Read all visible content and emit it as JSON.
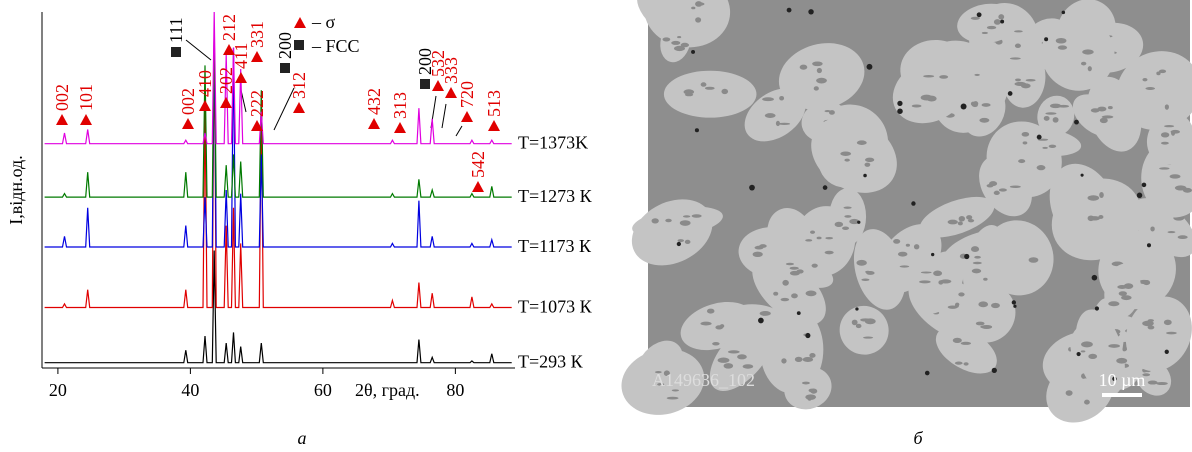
{
  "chart_data": {
    "type": "line",
    "ylabel": "I,відн.од.",
    "xlabel": "2θ, град.",
    "xlim": [
      17.6,
      89
    ],
    "xticks": [
      20,
      40,
      60,
      80
    ],
    "ylim": [
      0,
      100
    ],
    "x": [
      18,
      20.7,
      21.0,
      21.3,
      24.2,
      24.5,
      24.8,
      39.0,
      39.3,
      39.6,
      41.9,
      42.2,
      42.5,
      43.3,
      43.6,
      43.9,
      45.1,
      45.4,
      45.7,
      46.2,
      46.5,
      46.8,
      47.3,
      47.6,
      47.9,
      50.4,
      50.7,
      51.0,
      70.2,
      70.5,
      70.8,
      74.2,
      74.5,
      74.8,
      76.2,
      76.5,
      76.8,
      82.2,
      82.5,
      82.8,
      85.2,
      85.5,
      85.8,
      88.5
    ],
    "series": [
      {
        "name": "T=293 К",
        "color": "#000000",
        "values": [
          1.5,
          1.5,
          1.5,
          1.5,
          1.5,
          1.5,
          1.5,
          1.5,
          5,
          1.5,
          1.5,
          9,
          1.5,
          1.5,
          33,
          1.5,
          1.5,
          7,
          1.5,
          1.5,
          10,
          1.5,
          1.5,
          6,
          1.5,
          1.5,
          7,
          1.5,
          1.5,
          1.5,
          1.5,
          1.5,
          8,
          1.5,
          1.5,
          3,
          1.5,
          1.5,
          2,
          1.5,
          1.5,
          4,
          1.5,
          1.5
        ]
      },
      {
        "name": "T=1073 К",
        "color": "#e00000",
        "values": [
          17,
          17,
          18,
          17,
          17,
          22,
          17,
          17,
          22,
          17,
          17,
          75,
          17,
          17,
          95,
          17,
          17,
          40,
          17,
          17,
          45,
          17,
          17,
          35,
          17,
          17,
          72,
          17,
          17,
          19,
          17,
          17,
          24,
          17,
          17,
          21,
          17,
          17,
          20,
          17,
          17,
          18,
          17,
          17
        ]
      },
      {
        "name": "T=1173 К",
        "color": "#0000e0",
        "values": [
          34,
          34,
          37,
          34,
          34,
          45,
          34,
          34,
          40,
          34,
          34,
          48,
          34,
          34,
          95,
          34,
          34,
          50,
          34,
          34,
          90,
          34,
          34,
          49,
          34,
          34,
          60,
          34,
          34,
          35,
          34,
          34,
          47,
          34,
          34,
          37,
          34,
          34,
          35,
          34,
          34,
          36,
          34,
          34
        ]
      },
      {
        "name": "T=1273 К",
        "color": "#007a00",
        "values": [
          48,
          48,
          49,
          48,
          48,
          55,
          48,
          48,
          55,
          48,
          48,
          85,
          48,
          48,
          95,
          48,
          48,
          57,
          48,
          48,
          60,
          48,
          48,
          58,
          48,
          48,
          78,
          48,
          48,
          49,
          48,
          48,
          53,
          48,
          48,
          50,
          48,
          48,
          49,
          48,
          48,
          51,
          48,
          48
        ]
      },
      {
        "name": "T=1373K",
        "color": "#e000e0",
        "values": [
          63,
          63,
          66,
          63,
          63,
          67,
          63,
          63,
          64,
          63,
          63,
          66,
          63,
          63,
          100,
          63,
          63,
          88,
          63,
          63,
          90,
          63,
          63,
          84,
          63,
          63,
          72,
          63,
          63,
          64,
          63,
          63,
          73,
          63,
          63,
          70,
          63,
          63,
          64,
          63,
          63,
          64,
          63,
          63
        ]
      }
    ],
    "legend": [
      "– σ",
      "– FCC"
    ],
    "annotations": [
      {
        "text": "002",
        "kind": "sigma"
      },
      {
        "text": "101",
        "kind": "sigma"
      },
      {
        "text": "002",
        "kind": "sigma"
      },
      {
        "text": "410",
        "kind": "sigma"
      },
      {
        "text": "202",
        "kind": "sigma"
      },
      {
        "text": "212",
        "kind": "sigma"
      },
      {
        "text": "411",
        "kind": "sigma"
      },
      {
        "text": "331",
        "kind": "sigma"
      },
      {
        "text": "222",
        "kind": "sigma"
      },
      {
        "text": "312",
        "kind": "sigma"
      },
      {
        "text": "432",
        "kind": "sigma"
      },
      {
        "text": "313",
        "kind": "sigma"
      },
      {
        "text": "532",
        "kind": "sigma"
      },
      {
        "text": "333",
        "kind": "sigma"
      },
      {
        "text": "720",
        "kind": "sigma"
      },
      {
        "text": "513",
        "kind": "sigma"
      },
      {
        "text": "542",
        "kind": "sigma"
      },
      {
        "text": "111",
        "kind": "fcc"
      },
      {
        "text": "200",
        "kind": "fcc"
      },
      {
        "text": "200",
        "kind": "fcc"
      }
    ]
  },
  "micrograph": {
    "label": "A149636_102",
    "scale_bar": "10 µm"
  },
  "captions": [
    "а",
    "б"
  ]
}
